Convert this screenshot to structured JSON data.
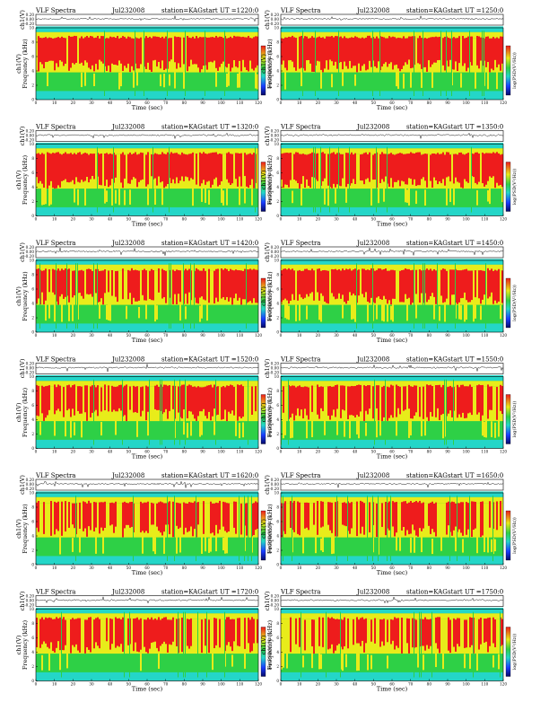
{
  "figure": {
    "header_title": "VLF Spectra",
    "station": "station=KAG",
    "start_prefix": "start  UT  =",
    "time_label": "Time  (sec)",
    "freq_label": "Frequency  (kHz)",
    "ch_label": "ch1(V)",
    "cb_label": "log(PSD(V²/Hz))",
    "x_ticks": [
      "0",
      "10",
      "20",
      "30",
      "40",
      "50",
      "60",
      "70",
      "80",
      "90",
      "100",
      "110",
      "120"
    ],
    "ch_ticks": [
      "0.20",
      "0.00",
      "-0.20"
    ],
    "freq_ticks": [
      "10",
      "8",
      "6",
      "4",
      "2",
      "0"
    ]
  },
  "chart_data": [
    {
      "type": "heatmap",
      "date": "Jul232008",
      "start_ut": "1220:0",
      "xlim": [
        0,
        120
      ],
      "ylim": [
        0,
        10
      ],
      "xlabel": "Time  (sec)",
      "ylabel": "Frequency  (kHz)"
    },
    {
      "type": "heatmap",
      "date": "Jul232008",
      "start_ut": "1250:0",
      "xlim": [
        0,
        120
      ],
      "ylim": [
        0,
        10
      ],
      "xlabel": "Time  (sec)",
      "ylabel": "Frequency  (kHz)"
    },
    {
      "type": "heatmap",
      "date": "Jul232008",
      "start_ut": "1320:0",
      "xlim": [
        0,
        120
      ],
      "ylim": [
        0,
        10
      ],
      "xlabel": "Time  (sec)",
      "ylabel": "Frequency  (kHz)"
    },
    {
      "type": "heatmap",
      "date": "Jul232008",
      "start_ut": "1350:0",
      "xlim": [
        0,
        120
      ],
      "ylim": [
        0,
        10
      ],
      "xlabel": "Time  (sec)",
      "ylabel": "Frequency  (kHz)"
    },
    {
      "type": "heatmap",
      "date": "Jul232008",
      "start_ut": "1420:0",
      "xlim": [
        0,
        120
      ],
      "ylim": [
        0,
        10
      ],
      "xlabel": "Time  (sec)",
      "ylabel": "Frequency  (kHz)"
    },
    {
      "type": "heatmap",
      "date": "Jul232008",
      "start_ut": "1450:0",
      "xlim": [
        0,
        120
      ],
      "ylim": [
        0,
        10
      ],
      "xlabel": "Time  (sec)",
      "ylabel": "Frequency  (kHz)"
    },
    {
      "type": "heatmap",
      "date": "Jul232008",
      "start_ut": "1520:0",
      "xlim": [
        0,
        120
      ],
      "ylim": [
        0,
        10
      ],
      "xlabel": "Time  (sec)",
      "ylabel": "Frequency  (kHz)"
    },
    {
      "type": "heatmap",
      "date": "Jul232008",
      "start_ut": "1550:0",
      "xlim": [
        0,
        120
      ],
      "ylim": [
        0,
        10
      ],
      "xlabel": "Time  (sec)",
      "ylabel": "Frequency  (kHz)"
    },
    {
      "type": "heatmap",
      "date": "Jul232008",
      "start_ut": "1620:0",
      "xlim": [
        0,
        120
      ],
      "ylim": [
        0,
        10
      ],
      "xlabel": "Time  (sec)",
      "ylabel": "Frequency  (kHz)"
    },
    {
      "type": "heatmap",
      "date": "Jul232008",
      "start_ut": "1650:0",
      "xlim": [
        0,
        120
      ],
      "ylim": [
        0,
        10
      ],
      "xlabel": "Time  (sec)",
      "ylabel": "Frequency  (kHz)"
    },
    {
      "type": "heatmap",
      "date": "Jul232008",
      "start_ut": "1720:0",
      "xlim": [
        0,
        120
      ],
      "ylim": [
        0,
        10
      ],
      "xlabel": "Time  (sec)",
      "ylabel": "Frequency  (kHz)"
    },
    {
      "type": "heatmap",
      "date": "Jul232008",
      "start_ut": "1750:0",
      "xlim": [
        0,
        120
      ],
      "ylim": [
        0,
        10
      ],
      "xlabel": "Time  (sec)",
      "ylabel": "Frequency  (kHz)"
    }
  ],
  "colors": {
    "red": "#ee1c1c",
    "yellow": "#e8ec1a",
    "green": "#2ed046",
    "cyan": "#24d6c8",
    "blue": "#1a3cff",
    "navy": "#050a66"
  }
}
